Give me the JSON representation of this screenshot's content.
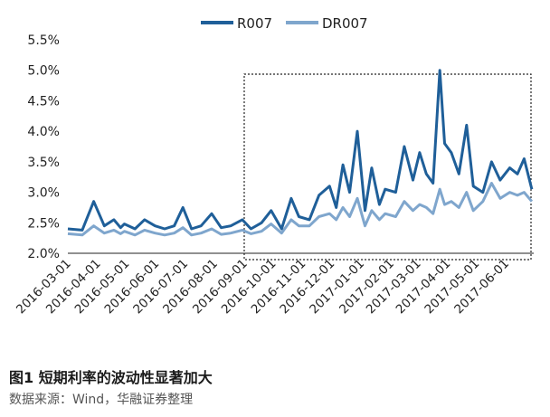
{
  "caption": "图1  短期利率的波动性显著加大",
  "source": "数据来源：Wind，华融证券整理",
  "chart_data": {
    "type": "line",
    "title": "",
    "xlabel": "",
    "ylabel": "",
    "ylim": [
      2.0,
      5.5
    ],
    "yticks": [
      "2.0%",
      "2.5%",
      "3.0%",
      "3.5%",
      "4.0%",
      "4.5%",
      "5.0%",
      "5.5%"
    ],
    "xticks": [
      "2016-03-01",
      "2016-04-01",
      "2016-05-01",
      "2016-06-01",
      "2016-07-01",
      "2016-08-01",
      "2016-09-01",
      "2016-10-01",
      "2016-11-01",
      "2016-12-01",
      "2017-01-01",
      "2017-02-01",
      "2017-03-01",
      "2017-04-01",
      "2017-05-01",
      "2017-06-01"
    ],
    "legend_position": "top",
    "highlight_range": [
      "2016-09-01",
      "2017-06-30"
    ],
    "colors": {
      "R007": "#1f5f99",
      "DR007": "#7fa6cd",
      "highlight": "#222222"
    },
    "series": [
      {
        "name": "R007",
        "x": [
          "2016-03-01",
          "2016-03-16",
          "2016-03-28",
          "2016-04-08",
          "2016-04-18",
          "2016-04-25",
          "2016-04-29",
          "2016-05-10",
          "2016-05-20",
          "2016-05-31",
          "2016-06-10",
          "2016-06-20",
          "2016-06-29",
          "2016-07-08",
          "2016-07-18",
          "2016-07-29",
          "2016-08-08",
          "2016-08-18",
          "2016-08-30",
          "2016-09-08",
          "2016-09-19",
          "2016-09-29",
          "2016-10-10",
          "2016-10-20",
          "2016-10-28",
          "2016-11-08",
          "2016-11-18",
          "2016-11-29",
          "2016-12-06",
          "2016-12-13",
          "2016-12-20",
          "2016-12-28",
          "2017-01-05",
          "2017-01-12",
          "2017-01-20",
          "2017-01-26",
          "2017-02-06",
          "2017-02-15",
          "2017-02-24",
          "2017-03-03",
          "2017-03-10",
          "2017-03-17",
          "2017-03-24",
          "2017-03-29",
          "2017-04-05",
          "2017-04-13",
          "2017-04-21",
          "2017-04-28",
          "2017-05-08",
          "2017-05-17",
          "2017-05-26",
          "2017-06-05",
          "2017-06-13",
          "2017-06-20",
          "2017-06-28"
        ],
        "values": [
          2.4,
          2.38,
          2.85,
          2.45,
          2.55,
          2.42,
          2.48,
          2.4,
          2.55,
          2.45,
          2.4,
          2.45,
          2.75,
          2.4,
          2.45,
          2.65,
          2.42,
          2.45,
          2.55,
          2.4,
          2.5,
          2.7,
          2.4,
          2.9,
          2.6,
          2.55,
          2.95,
          3.1,
          2.75,
          3.45,
          3.0,
          4.0,
          2.7,
          3.4,
          2.8,
          3.05,
          3.0,
          3.75,
          3.2,
          3.65,
          3.3,
          3.15,
          5.0,
          3.8,
          3.65,
          3.3,
          4.1,
          3.1,
          3.0,
          3.5,
          3.2,
          3.4,
          3.3,
          3.55,
          3.05
        ]
      },
      {
        "name": "DR007",
        "x": [
          "2016-03-01",
          "2016-03-16",
          "2016-03-28",
          "2016-04-08",
          "2016-04-18",
          "2016-04-25",
          "2016-04-29",
          "2016-05-10",
          "2016-05-20",
          "2016-05-31",
          "2016-06-10",
          "2016-06-20",
          "2016-06-29",
          "2016-07-08",
          "2016-07-18",
          "2016-07-29",
          "2016-08-08",
          "2016-08-18",
          "2016-08-30",
          "2016-09-08",
          "2016-09-19",
          "2016-09-29",
          "2016-10-10",
          "2016-10-20",
          "2016-10-28",
          "2016-11-08",
          "2016-11-18",
          "2016-11-29",
          "2016-12-06",
          "2016-12-13",
          "2016-12-20",
          "2016-12-28",
          "2017-01-05",
          "2017-01-12",
          "2017-01-20",
          "2017-01-26",
          "2017-02-06",
          "2017-02-15",
          "2017-02-24",
          "2017-03-03",
          "2017-03-10",
          "2017-03-17",
          "2017-03-24",
          "2017-03-29",
          "2017-04-05",
          "2017-04-13",
          "2017-04-21",
          "2017-04-28",
          "2017-05-08",
          "2017-05-17",
          "2017-05-26",
          "2017-06-05",
          "2017-06-13",
          "2017-06-20",
          "2017-06-28"
        ],
        "values": [
          2.32,
          2.3,
          2.45,
          2.33,
          2.38,
          2.32,
          2.36,
          2.3,
          2.38,
          2.33,
          2.3,
          2.33,
          2.42,
          2.3,
          2.33,
          2.4,
          2.31,
          2.33,
          2.38,
          2.32,
          2.36,
          2.48,
          2.33,
          2.55,
          2.45,
          2.45,
          2.6,
          2.65,
          2.55,
          2.75,
          2.6,
          2.9,
          2.45,
          2.7,
          2.55,
          2.65,
          2.6,
          2.85,
          2.7,
          2.8,
          2.75,
          2.65,
          3.05,
          2.8,
          2.85,
          2.75,
          3.0,
          2.7,
          2.85,
          3.15,
          2.9,
          3.0,
          2.95,
          3.0,
          2.85
        ]
      }
    ]
  }
}
